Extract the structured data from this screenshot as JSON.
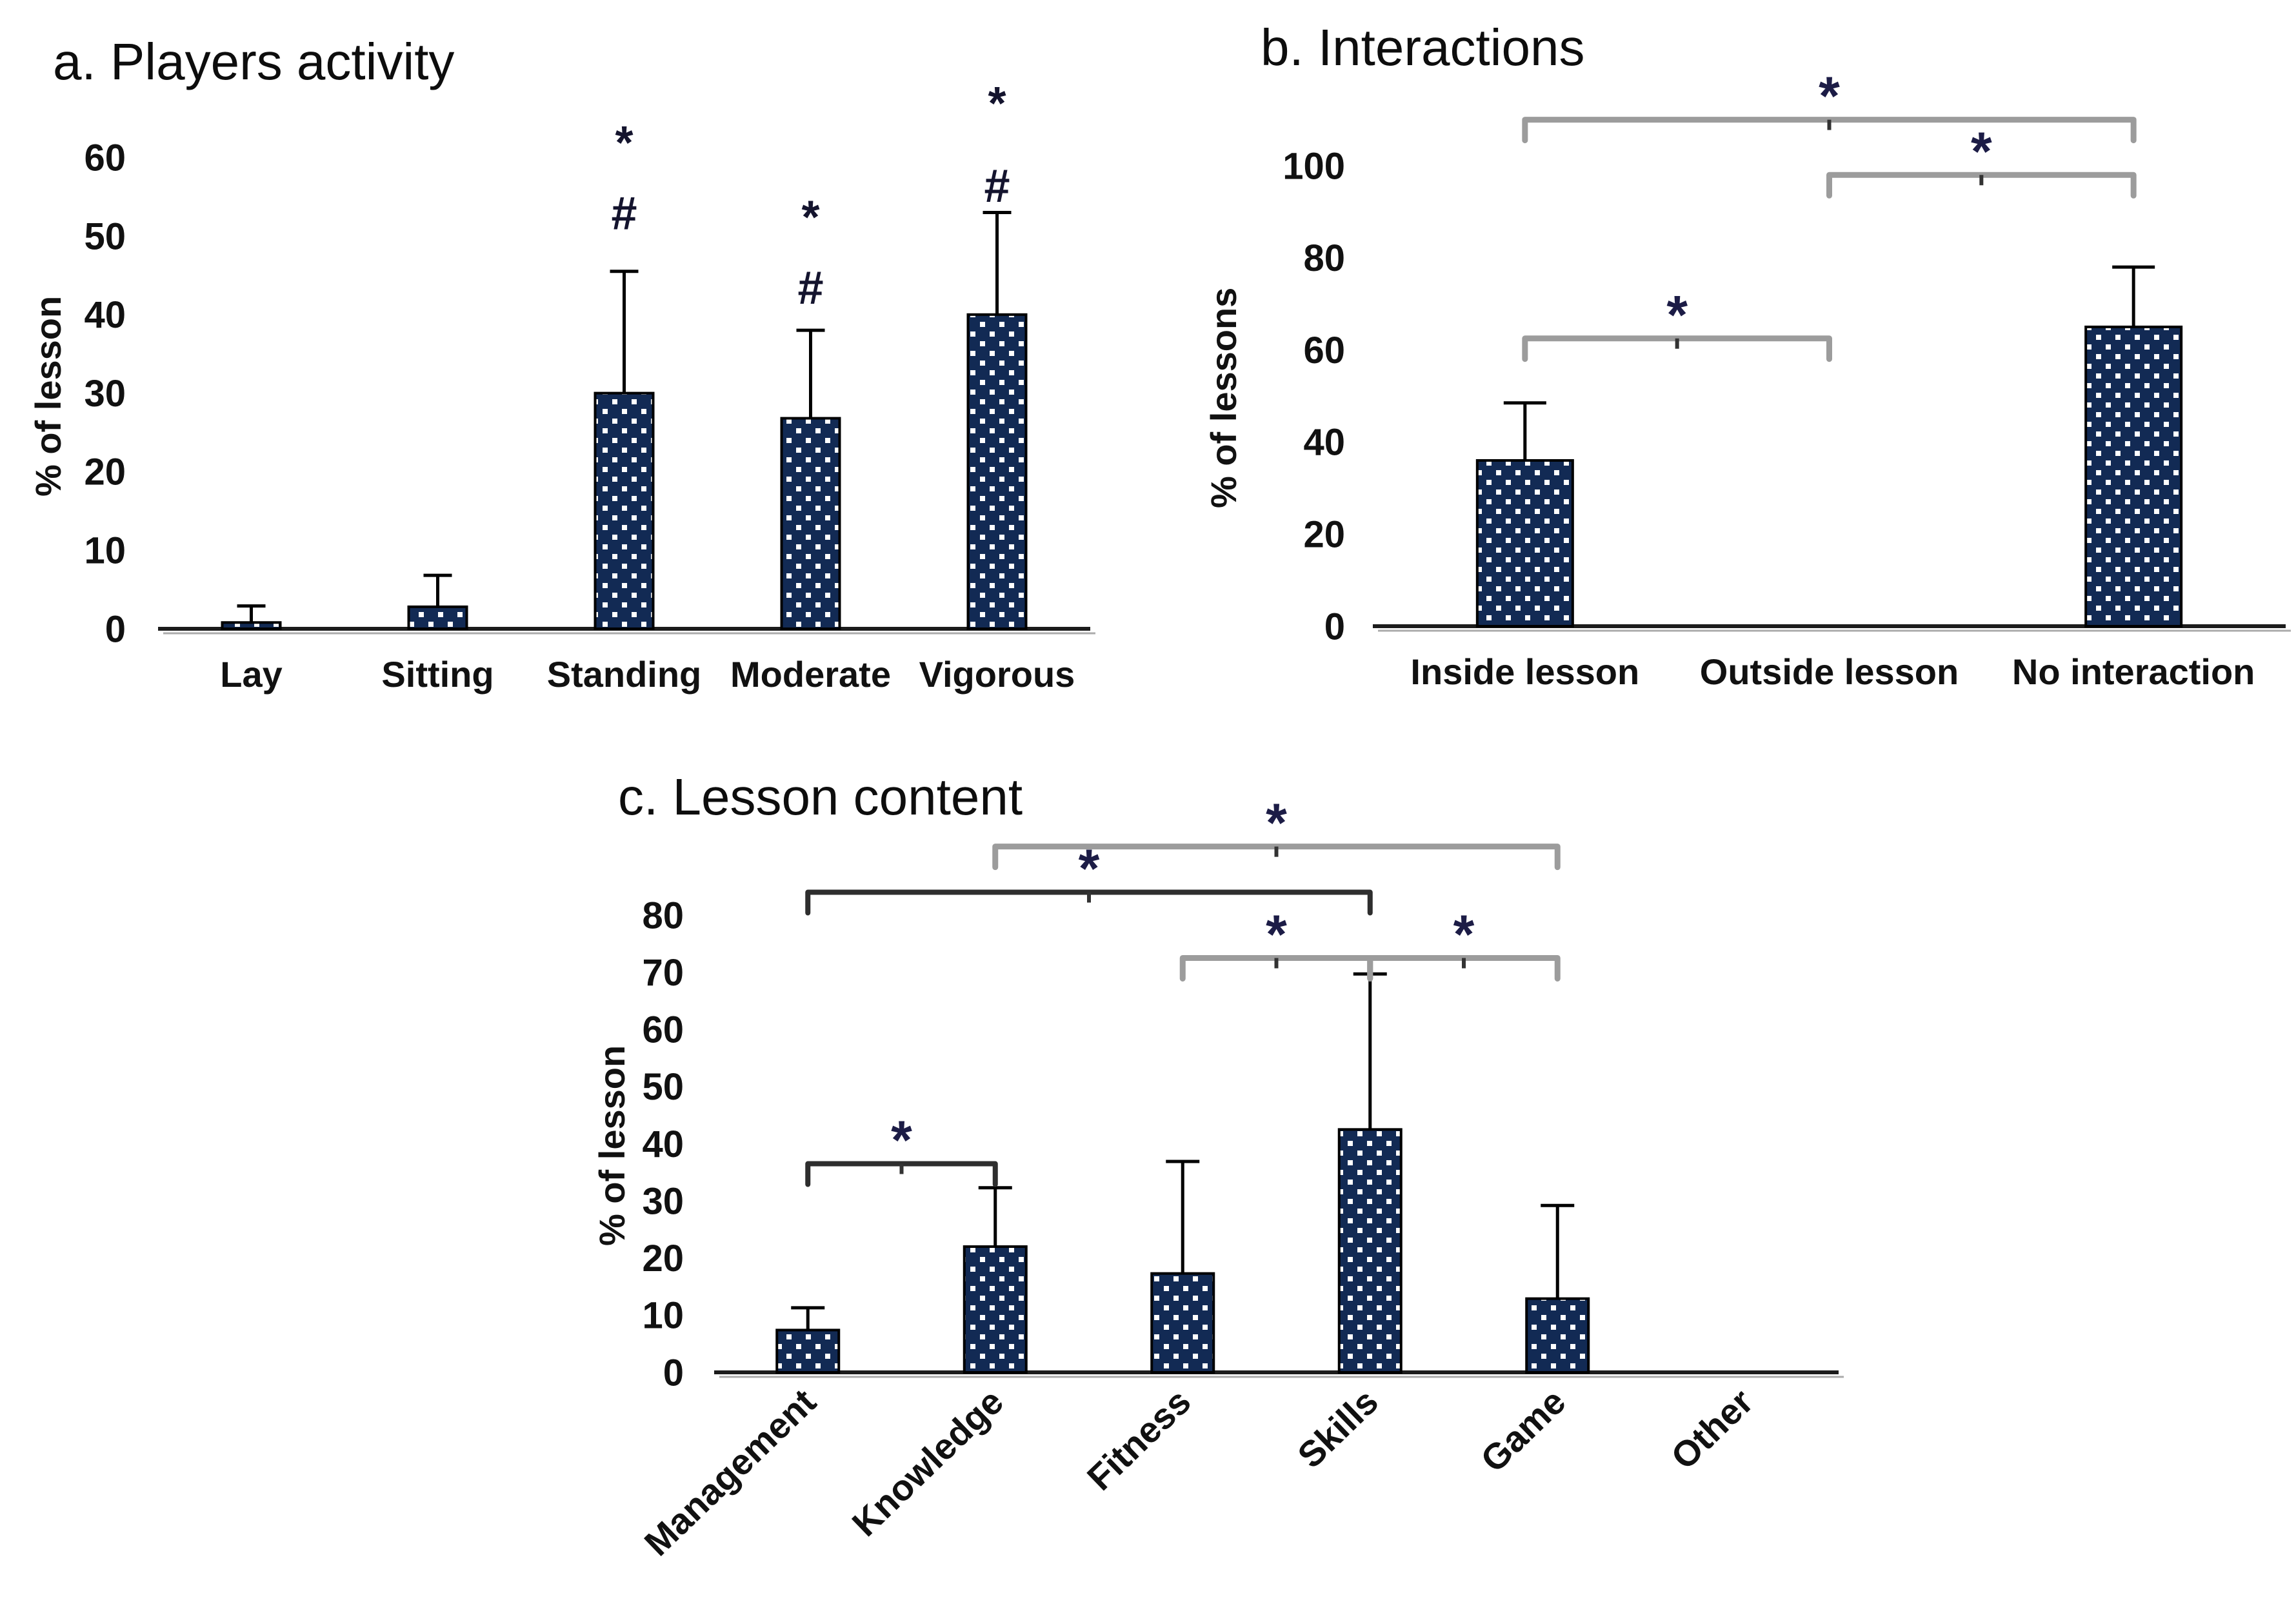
{
  "figure": {
    "background": "#ffffff",
    "bar_pattern": "navy bar filled with small white square dots (25% dotted fill), black outline",
    "error_bars": "upper whisker only with flat cap"
  },
  "colors": {
    "bar_fill": "#122a54",
    "bar_dot": "#ffffff",
    "bar_stroke": "#000000",
    "axis_line": "#1c1c1c",
    "axis_shadow": "#ababab",
    "error_bar": "#000000",
    "bracket_gray": "#9c9c9c",
    "bracket_dark": "#2e2e2e",
    "bracket_tick": "#333333",
    "star": "#1c1c46",
    "annotation": "#14142e",
    "text": "#111111"
  },
  "chart_data": [
    {
      "id": "a",
      "type": "bar",
      "title": "a. Players activity",
      "ylabel": "% of lesson",
      "xlabel": "",
      "ylim": [
        0,
        60
      ],
      "yticks": [
        0,
        10,
        20,
        30,
        40,
        50,
        60
      ],
      "grid": "off",
      "legend": "none",
      "categories": [
        "Lay",
        "Sitting",
        "Standing",
        "Moderate",
        "Vigorous"
      ],
      "values": [
        0.8,
        2.8,
        30,
        26.8,
        40
      ],
      "errors_up": [
        2.1,
        4,
        15.5,
        11.2,
        13
      ],
      "annotations": [
        {
          "category": "Standing",
          "symbol": "*",
          "y": 62
        },
        {
          "category": "Standing",
          "symbol": "#",
          "y": 53
        },
        {
          "category": "Moderate",
          "symbol": "*",
          "y": 52.5
        },
        {
          "category": "Moderate",
          "symbol": "#",
          "y": 43.5
        },
        {
          "category": "Vigorous",
          "symbol": "*",
          "y": 67
        },
        {
          "category": "Vigorous",
          "symbol": "#",
          "y": 56.5
        }
      ],
      "brackets": []
    },
    {
      "id": "b",
      "type": "bar",
      "title": "b. Interactions",
      "ylabel": "% of lessons",
      "xlabel": "",
      "ylim": [
        0,
        100
      ],
      "yticks": [
        0,
        20,
        40,
        60,
        80,
        100
      ],
      "grid": "off",
      "legend": "none",
      "categories": [
        "Inside lesson",
        "Outside lesson",
        "No interaction"
      ],
      "values": [
        36,
        0,
        65
      ],
      "errors_up": [
        12.5,
        0,
        13
      ],
      "annotations": [],
      "brackets": [
        {
          "from": "Inside lesson",
          "to": "No interaction",
          "y": 110,
          "label": "*",
          "style": "gray"
        },
        {
          "from": "Outside lesson",
          "to": "No interaction",
          "y": 98,
          "label": "*",
          "style": "gray"
        },
        {
          "from": "Inside lesson",
          "to": "Outside lesson",
          "y": 62.5,
          "label": "*",
          "style": "gray"
        }
      ]
    },
    {
      "id": "c",
      "type": "bar",
      "title": "c. Lesson content",
      "ylabel": "% of lesson",
      "xlabel": "",
      "ylim": [
        0,
        80
      ],
      "yticks": [
        0,
        10,
        20,
        30,
        40,
        50,
        60,
        70,
        80
      ],
      "grid": "off",
      "legend": "none",
      "categories": [
        "Management",
        "Knowledge",
        "Fitness",
        "Skills",
        "Game",
        "Other"
      ],
      "values": [
        7.4,
        22,
        17.3,
        42.5,
        12.9,
        0
      ],
      "errors_up": [
        3.9,
        10.3,
        19.6,
        27.2,
        16.3,
        0
      ],
      "annotations": [],
      "brackets": [
        {
          "from": "Knowledge",
          "to": "Game",
          "y": 92,
          "label": "*",
          "style": "gray"
        },
        {
          "from": "Management",
          "to": "Skills",
          "y": 84,
          "label": "*",
          "style": "dark"
        },
        {
          "from": "Fitness",
          "to": "Skills",
          "y": 72.5,
          "label": "*",
          "style": "gray"
        },
        {
          "from": "Skills",
          "to": "Game",
          "y": 72.5,
          "label": "*",
          "style": "gray"
        },
        {
          "from": "Management",
          "to": "Knowledge",
          "y": 36.5,
          "label": "*",
          "style": "dark"
        }
      ]
    }
  ]
}
